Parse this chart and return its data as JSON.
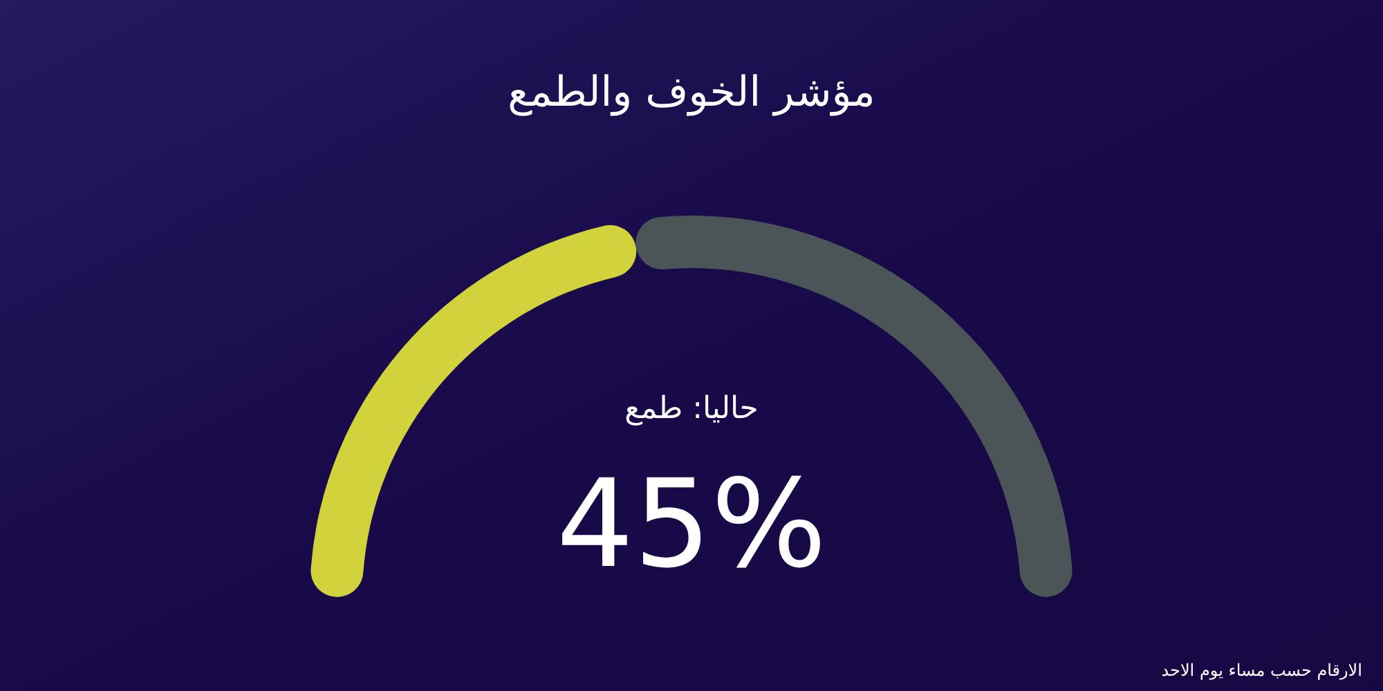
{
  "chart_data": {
    "type": "donut",
    "title": "مؤشر الخوف والطمع",
    "categories": [
      null,
      null
    ],
    "values": [
      45,
      55
    ],
    "colors": [
      "#d1d23c",
      "#4b5457"
    ],
    "value_labels": [
      "45%",
      null
    ],
    "annotations": [
      "حاليا: طمع",
      "الارقام حسب مساء يوم الاحد"
    ]
  }
}
